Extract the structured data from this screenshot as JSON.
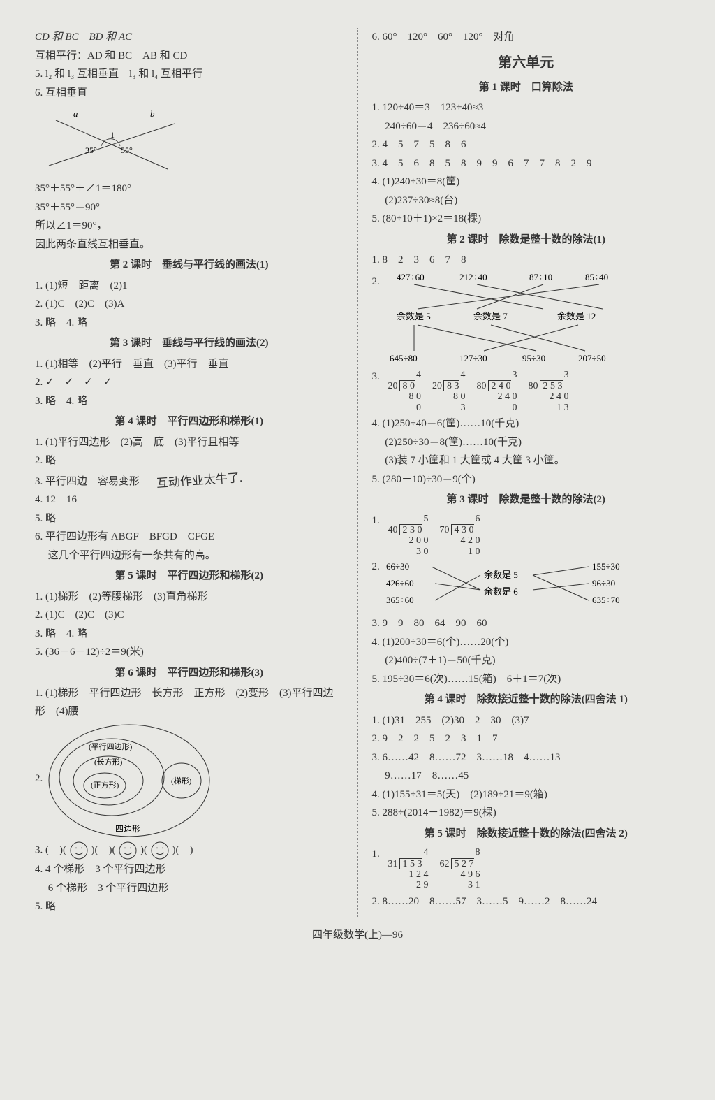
{
  "footer": "四年级数学(上)—96",
  "left": {
    "pre": [
      "CD 和 BC　BD 和 AC",
      "互相平行：AD 和 BC　AB 和 CD",
      "5. l₂ 和 l₃ 互相垂直　l₃ 和 l₄ 互相平行",
      "6. 互相垂直"
    ],
    "angle_labels": {
      "a": "a",
      "b": "b",
      "one": "1",
      "l35": "35°",
      "l55": "55°"
    },
    "post_angle": [
      "35°＋55°＋∠1＝180°",
      "35°＋55°＝90°",
      "所以∠1＝90°，",
      "因此两条直线互相垂直。"
    ],
    "s2_title": "第 2 课时　垂线与平行线的画法(1)",
    "s2": [
      "1. (1)短　距离　(2)1",
      "2. (1)C　(2)C　(3)A",
      "3. 略　4. 略"
    ],
    "s3_title": "第 3 课时　垂线与平行线的画法(2)",
    "s3": [
      "1. (1)相等　(2)平行　垂直　(3)平行　垂直",
      "2. ✓　✓　✓　✓",
      "3. 略　4. 略"
    ],
    "s4_title": "第 4 课时　平行四边形和梯形(1)",
    "s4": [
      "1. (1)平行四边形　(2)高　底　(3)平行且相等",
      "2. 略",
      "3. 平行四边　容易变形",
      "4. 12　16",
      "5. 略",
      "6. 平行四边形有 ABGF　BFGD　CFGE",
      "　 这几个平行四边形有一条共有的高。"
    ],
    "handwrite": "互动作业太牛了.",
    "s5_title": "第 5 课时　平行四边形和梯形(2)",
    "s5": [
      "1. (1)梯形　(2)等腰梯形　(3)直角梯形",
      "2. (1)C　(2)C　(3)C",
      "3. 略　4. 略",
      "5. (36－6－12)÷2＝9(米)"
    ],
    "s6_title": "第 6 课时　平行四边形和梯形(3)",
    "s6_1": "1. (1)梯形　平行四边形　长方形　正方形　(2)变形　(3)平行四边形　(4)腰",
    "venn": {
      "outer": "四边形",
      "pxsbx": "(平行四边形)",
      "cfx": "(长方形)",
      "zfx": "(正方形)",
      "tx": "(梯形)"
    },
    "q2label": "2.",
    "q3": "3. (　　)(　　)(　　)(　　)(　　)(　　)",
    "s6_rest": [
      "4. 4 个梯形　3 个平行四边形",
      "　 6 个梯形　3 个平行四边形",
      "5. 略"
    ]
  },
  "right": {
    "top": "6. 60°　120°　60°　120°　对角",
    "unit_title": "第六单元",
    "r1_title": "第 1 课时　口算除法",
    "r1": [
      "1. 120÷40＝3　123÷40≈3",
      "　 240÷60＝4　236÷60≈4",
      "2. 4　5　7　5　8　6",
      "3. 4　5　6　8　5　8　9　9　6　7　7　8　2　9",
      "4. (1)240÷30＝8(筐)",
      "　 (2)237÷30≈8(台)",
      "5. (80÷10＋1)×2＝18(棵)"
    ],
    "r2_title": "第 2 课时　除数是整十数的除法(1)",
    "r2_1": "1. 8　2　3　6　7　8",
    "r2_2label": "2.",
    "r2_top": [
      "427÷60",
      "212÷40",
      "87÷10",
      "85÷40"
    ],
    "r2_mid": [
      "余数是 5",
      "余数是 7",
      "余数是 12"
    ],
    "r2_bot": [
      "645÷80",
      "127÷30",
      "95÷30",
      "207÷50"
    ],
    "r2_3label": "3.",
    "ldiv1": [
      {
        "divisor": "20",
        "dividend": "8 0",
        "q": "4",
        "sub": "8 0",
        "rem": "0"
      },
      {
        "divisor": "20",
        "dividend": "8 3",
        "q": "4",
        "sub": "8 0",
        "rem": "3"
      },
      {
        "divisor": "80",
        "dividend": "2 4 0",
        "q": "3",
        "sub": "2 4 0",
        "rem": "0"
      },
      {
        "divisor": "80",
        "dividend": "2 5 3",
        "q": "3",
        "sub": "2 4 0",
        "rem": "1 3"
      }
    ],
    "r2_rest": [
      "4. (1)250÷40＝6(筐)……10(千克)",
      "　 (2)250÷30＝8(筐)……10(千克)",
      "　 (3)装 7 小筐和 1 大筐或 4 大筐 3 小筐。",
      "5. (280－10)÷30＝9(个)"
    ],
    "r3_title": "第 3 课时　除数是整十数的除法(2)",
    "r3_1label": "1.",
    "ldiv2": [
      {
        "divisor": "40",
        "dividend": "2 3 0",
        "q": "5",
        "sub": "2 0 0",
        "rem": "3 0"
      },
      {
        "divisor": "70",
        "dividend": "4 3 0",
        "q": "6",
        "sub": "4 2 0",
        "rem": "1 0"
      }
    ],
    "r3_2label": "2.",
    "r3_2left": [
      "66÷30",
      "426÷60",
      "365÷60"
    ],
    "r3_2mid": [
      "余数是 5",
      "余数是 6"
    ],
    "r3_2right": [
      "155÷30",
      "96÷30",
      "635÷70"
    ],
    "r3_rest": [
      "3. 9　9　80　64　90　60",
      "4. (1)200÷30＝6(个)……20(个)",
      "　 (2)400÷(7＋1)＝50(千克)",
      "5. 195÷30＝6(次)……15(箱)　6＋1＝7(次)"
    ],
    "r4_title": "第 4 课时　除数接近整十数的除法(四舍法 1)",
    "r4": [
      "1. (1)31　255　(2)30　2　30　(3)7",
      "2. 9　2　2　5　2　3　1　7",
      "3. 6……42　8……72　3……18　4……13",
      "　 9……17　8……45",
      "4. (1)155÷31＝5(天)　(2)189÷21＝9(箱)",
      "5. 288÷(2014－1982)＝9(棵)"
    ],
    "r5_title": "第 5 课时　除数接近整十数的除法(四舍法 2)",
    "r5_1label": "1.",
    "ldiv3": [
      {
        "divisor": "31",
        "dividend": "1 5 3",
        "q": "4",
        "sub": "1 2 4",
        "rem": "2 9"
      },
      {
        "divisor": "62",
        "dividend": "5 2 7",
        "q": "8",
        "sub": "4 9 6",
        "rem": "3 1"
      }
    ],
    "r5_2": "2. 8……20　8……57　3……5　9……2　8……24"
  }
}
